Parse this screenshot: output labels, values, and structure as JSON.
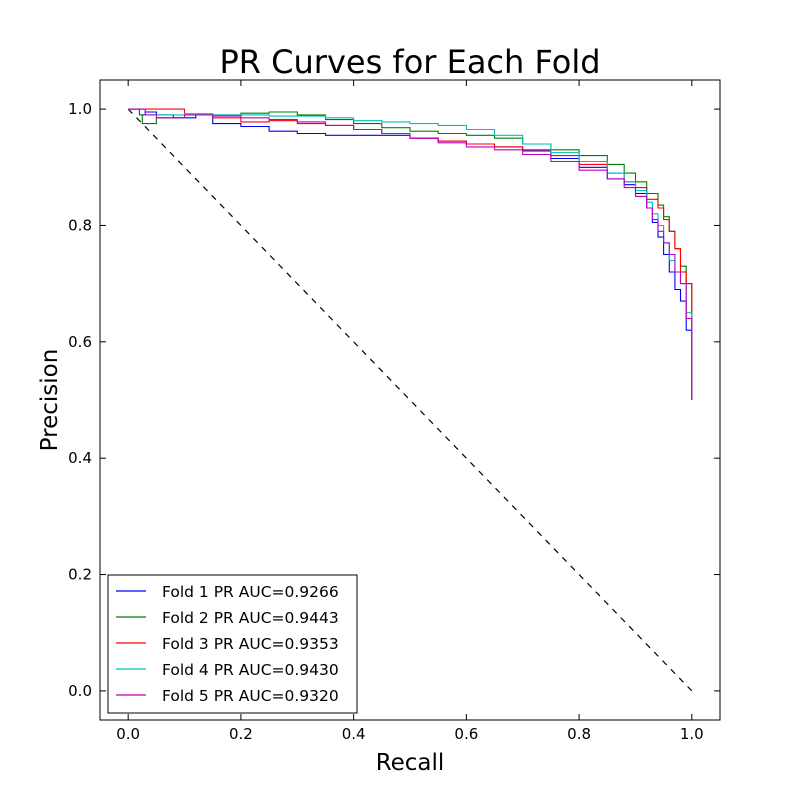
{
  "chart_data": {
    "type": "line",
    "title": "PR Curves for Each Fold",
    "xlabel": "Recall",
    "ylabel": "Precision",
    "xlim": [
      -0.05,
      1.05
    ],
    "ylim": [
      -0.05,
      1.05
    ],
    "xticks": [
      0.0,
      0.2,
      0.4,
      0.6,
      0.8,
      1.0
    ],
    "yticks": [
      0.0,
      0.2,
      0.4,
      0.6,
      0.8,
      1.0
    ],
    "xtick_labels": [
      "0.0",
      "0.2",
      "0.4",
      "0.6",
      "0.8",
      "1.0"
    ],
    "ytick_labels": [
      "0.0",
      "0.2",
      "0.4",
      "0.6",
      "0.8",
      "1.0"
    ],
    "grid": false,
    "legend_position": "lower-left",
    "baseline": {
      "style": "dashed",
      "color": "#000000",
      "x": [
        0,
        1
      ],
      "y": [
        1,
        0
      ]
    },
    "series": [
      {
        "name": "Fold 1 PR AUC=0.9266",
        "color": "#0000ff",
        "x": [
          0,
          0.02,
          0.03,
          0.05,
          0.08,
          0.12,
          0.15,
          0.2,
          0.25,
          0.3,
          0.35,
          0.4,
          0.45,
          0.5,
          0.55,
          0.6,
          0.65,
          0.7,
          0.75,
          0.8,
          0.85,
          0.88,
          0.9,
          0.92,
          0.93,
          0.94,
          0.95,
          0.96,
          0.97,
          0.98,
          0.99,
          1.0,
          1.0
        ],
        "y": [
          1.0,
          0.99,
          0.995,
          0.99,
          0.985,
          0.99,
          0.975,
          0.97,
          0.962,
          0.958,
          0.955,
          0.955,
          0.955,
          0.95,
          0.945,
          0.94,
          0.935,
          0.928,
          0.915,
          0.9,
          0.88,
          0.87,
          0.855,
          0.83,
          0.805,
          0.78,
          0.75,
          0.72,
          0.69,
          0.67,
          0.62,
          0.55,
          0.5
        ]
      },
      {
        "name": "Fold 2 PR AUC=0.9443",
        "color": "#008000",
        "x": [
          0,
          0.02,
          0.025,
          0.05,
          0.1,
          0.15,
          0.2,
          0.25,
          0.27,
          0.3,
          0.35,
          0.4,
          0.45,
          0.5,
          0.55,
          0.6,
          0.65,
          0.7,
          0.75,
          0.8,
          0.85,
          0.88,
          0.9,
          0.92,
          0.94,
          0.95,
          0.96,
          0.97,
          0.98,
          0.99,
          1.0,
          1.0
        ],
        "y": [
          1.0,
          0.99,
          0.975,
          0.985,
          0.99,
          0.99,
          0.993,
          0.995,
          0.995,
          0.99,
          0.982,
          0.975,
          0.968,
          0.962,
          0.958,
          0.955,
          0.95,
          0.94,
          0.93,
          0.92,
          0.905,
          0.89,
          0.875,
          0.855,
          0.835,
          0.815,
          0.79,
          0.76,
          0.73,
          0.7,
          0.67,
          0.5
        ]
      },
      {
        "name": "Fold 3 PR AUC=0.9353",
        "color": "#ff0000",
        "x": [
          0,
          0.05,
          0.09,
          0.1,
          0.15,
          0.2,
          0.25,
          0.3,
          0.35,
          0.4,
          0.45,
          0.5,
          0.55,
          0.6,
          0.65,
          0.7,
          0.75,
          0.8,
          0.85,
          0.88,
          0.9,
          0.92,
          0.94,
          0.95,
          0.96,
          0.97,
          0.98,
          0.99,
          1.0,
          1.0
        ],
        "y": [
          1.0,
          1.0,
          1.0,
          0.99,
          0.985,
          0.978,
          0.98,
          0.975,
          0.972,
          0.965,
          0.958,
          0.95,
          0.945,
          0.94,
          0.935,
          0.93,
          0.92,
          0.905,
          0.89,
          0.875,
          0.865,
          0.845,
          0.83,
          0.81,
          0.79,
          0.76,
          0.72,
          0.7,
          0.65,
          0.5
        ]
      },
      {
        "name": "Fold 4 PR AUC=0.9430",
        "color": "#00bfbf",
        "x": [
          0,
          0.03,
          0.05,
          0.1,
          0.15,
          0.2,
          0.25,
          0.3,
          0.35,
          0.4,
          0.45,
          0.5,
          0.55,
          0.6,
          0.65,
          0.7,
          0.75,
          0.8,
          0.85,
          0.88,
          0.9,
          0.92,
          0.93,
          0.94,
          0.95,
          0.96,
          0.97,
          0.98,
          0.99,
          1.0,
          1.0
        ],
        "y": [
          1.0,
          0.99,
          0.99,
          0.992,
          0.99,
          0.99,
          0.988,
          0.988,
          0.985,
          0.98,
          0.978,
          0.975,
          0.972,
          0.965,
          0.955,
          0.94,
          0.925,
          0.91,
          0.89,
          0.875,
          0.86,
          0.84,
          0.82,
          0.8,
          0.77,
          0.74,
          0.72,
          0.7,
          0.65,
          0.6,
          0.5
        ]
      },
      {
        "name": "Fold 5 PR AUC=0.9320",
        "color": "#bf00bf",
        "x": [
          0,
          0.03,
          0.05,
          0.1,
          0.15,
          0.2,
          0.25,
          0.3,
          0.35,
          0.4,
          0.45,
          0.5,
          0.55,
          0.6,
          0.65,
          0.7,
          0.75,
          0.8,
          0.85,
          0.88,
          0.9,
          0.92,
          0.93,
          0.94,
          0.95,
          0.96,
          0.97,
          0.98,
          0.99,
          1.0,
          1.0
        ],
        "y": [
          1.0,
          0.99,
          0.985,
          0.99,
          0.988,
          0.985,
          0.982,
          0.978,
          0.972,
          0.965,
          0.958,
          0.95,
          0.942,
          0.935,
          0.93,
          0.922,
          0.91,
          0.895,
          0.88,
          0.865,
          0.85,
          0.83,
          0.81,
          0.79,
          0.77,
          0.75,
          0.72,
          0.7,
          0.64,
          0.58,
          0.5
        ]
      }
    ]
  }
}
